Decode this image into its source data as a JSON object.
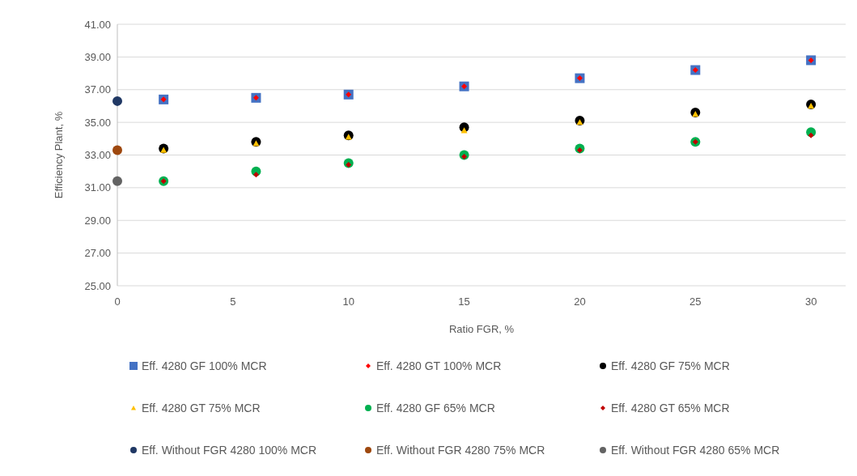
{
  "chart_data": {
    "type": "scatter",
    "xlabel": "Ratio FGR, %",
    "ylabel": "Efficiency Plant, %",
    "xlim": [
      0,
      31.5
    ],
    "xticks": [
      0,
      5,
      10,
      15,
      20,
      25,
      30
    ],
    "ylim": [
      25,
      41
    ],
    "yticks": [
      {
        "value": 25,
        "label": "25.00"
      },
      {
        "value": 27,
        "label": "27.00"
      },
      {
        "value": 29,
        "label": "29.00"
      },
      {
        "value": 31,
        "label": "31.00"
      },
      {
        "value": 33,
        "label": "33.00"
      },
      {
        "value": 35,
        "label": "35.00"
      },
      {
        "value": 37,
        "label": "37.00"
      },
      {
        "value": 39,
        "label": "39.00"
      },
      {
        "value": 41,
        "label": "41.00"
      }
    ],
    "grid": "y",
    "legend": "bottom",
    "series": [
      {
        "name": "Eff. 4280 GF 100% MCR",
        "color": "#4472c4",
        "marker": "square",
        "x": [
          2,
          6,
          10,
          15,
          20,
          25,
          30
        ],
        "values": [
          36.4,
          36.5,
          36.7,
          37.2,
          37.7,
          38.2,
          38.8
        ]
      },
      {
        "name": "Eff. 4280 GT 100% MCR",
        "color": "#ff0000",
        "marker": "diamond",
        "x": [
          2,
          6,
          10,
          15,
          20,
          25,
          30
        ],
        "values": [
          36.4,
          36.5,
          36.7,
          37.2,
          37.7,
          38.2,
          38.8
        ]
      },
      {
        "name": "Eff. 4280 GF 75% MCR",
        "color": "#000000",
        "marker": "circle",
        "x": [
          2,
          6,
          10,
          15,
          20,
          25,
          30
        ],
        "values": [
          33.4,
          33.8,
          34.2,
          34.7,
          35.1,
          35.6,
          36.1
        ]
      },
      {
        "name": "Eff. 4280 GT 75% MCR",
        "color": "#ffc000",
        "marker": "triangle",
        "x": [
          2,
          6,
          10,
          15,
          20,
          25,
          30
        ],
        "values": [
          33.3,
          33.7,
          34.1,
          34.5,
          35.0,
          35.5,
          36.0
        ]
      },
      {
        "name": "Eff. 4280 GF 65% MCR",
        "color": "#00b050",
        "marker": "circle",
        "x": [
          2,
          6,
          10,
          15,
          20,
          25,
          30
        ],
        "values": [
          31.4,
          32.0,
          32.5,
          33.0,
          33.4,
          33.8,
          34.4
        ]
      },
      {
        "name": "Eff. 4280 GT 65% MCR",
        "color": "#c00000",
        "marker": "diamond",
        "x": [
          2,
          6,
          10,
          15,
          20,
          25,
          30
        ],
        "values": [
          31.4,
          31.8,
          32.4,
          32.9,
          33.3,
          33.8,
          34.2
        ]
      },
      {
        "name": "Eff. Without FGR 4280 100% MCR",
        "color": "#203864",
        "marker": "circle",
        "x": [
          0
        ],
        "values": [
          36.3
        ]
      },
      {
        "name": "Eff. Without FGR 4280 75% MCR",
        "color": "#9e480e",
        "marker": "circle",
        "x": [
          0
        ],
        "values": [
          33.3
        ]
      },
      {
        "name": "Eff. Without FGR 4280 65% MCR",
        "color": "#636363",
        "marker": "circle",
        "x": [
          0
        ],
        "values": [
          31.4
        ]
      }
    ]
  }
}
